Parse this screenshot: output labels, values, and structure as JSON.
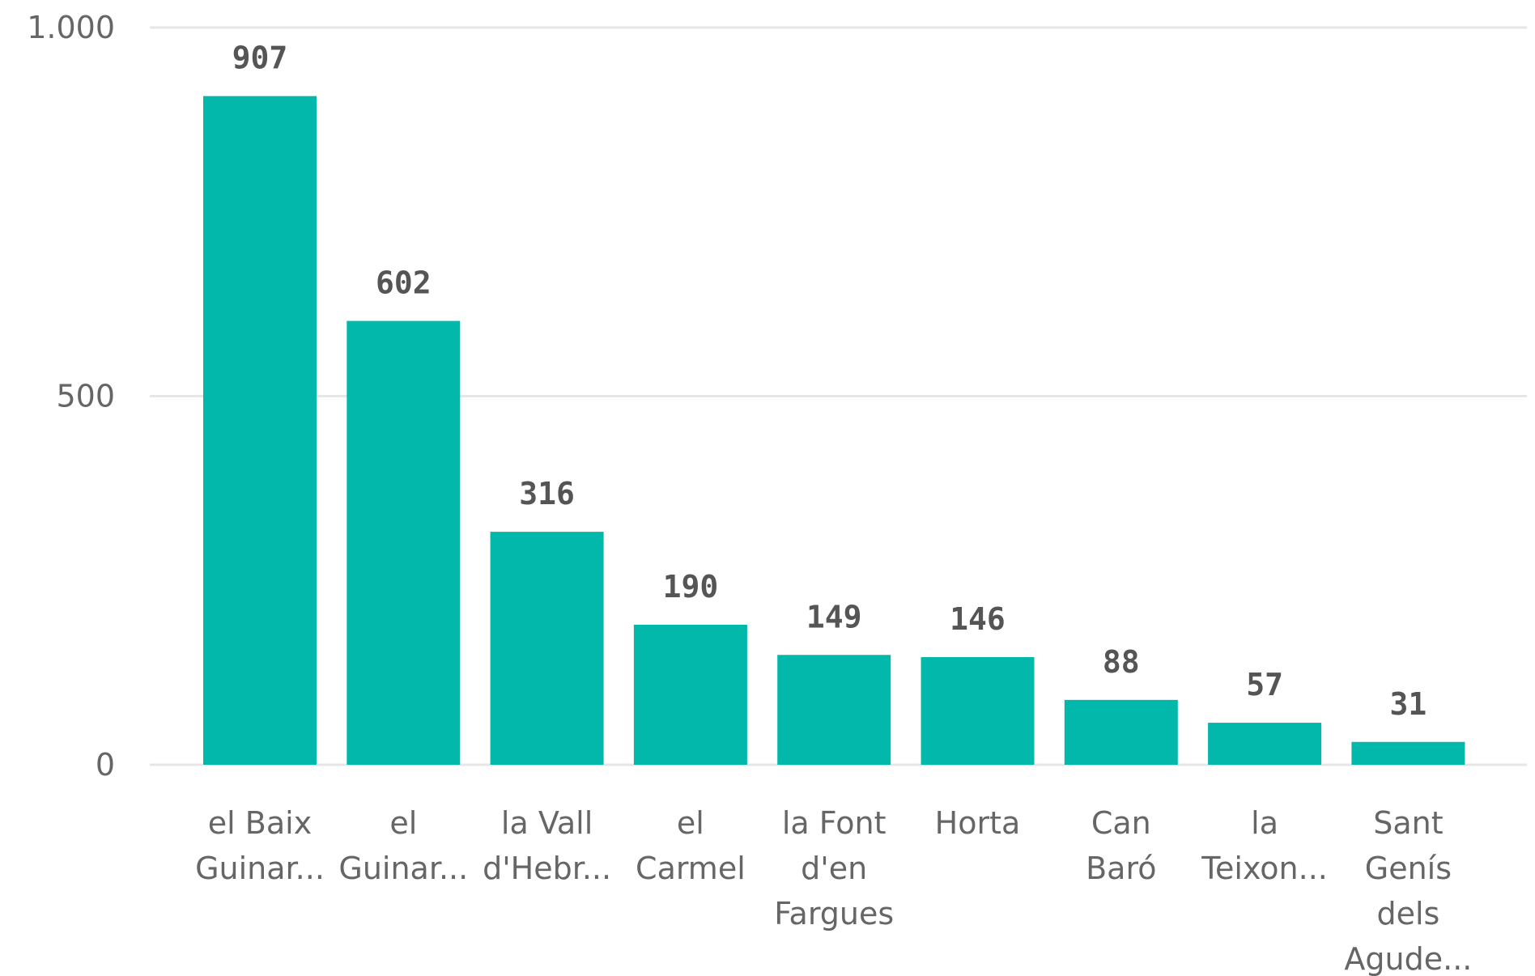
{
  "chart_data": {
    "type": "bar",
    "title": "",
    "xlabel": "",
    "ylabel": "",
    "categories": [
      [
        "el Baix",
        "Guinar..."
      ],
      [
        "el",
        "Guinar..."
      ],
      [
        "la Vall",
        "d'Hebr..."
      ],
      [
        "el",
        "Carmel"
      ],
      [
        "la Font",
        "d'en",
        "Fargues"
      ],
      [
        "Horta"
      ],
      [
        "Can",
        "Baró"
      ],
      [
        "la",
        "Teixon..."
      ],
      [
        "Sant",
        "Genís",
        "dels",
        "Agude..."
      ]
    ],
    "values": [
      907,
      602,
      316,
      190,
      149,
      146,
      88,
      57,
      31
    ],
    "data_labels": [
      "907",
      "602",
      "316",
      "190",
      "149",
      "146",
      "88",
      "57",
      "31"
    ],
    "ylim": [
      0,
      1000
    ],
    "y_ticks": [
      {
        "value": 0,
        "label": "0"
      },
      {
        "value": 500,
        "label": "500"
      },
      {
        "value": 1000,
        "label": "1.000"
      }
    ],
    "grid": true,
    "legend": "none",
    "colors": {
      "bar": "#01B8AA",
      "gridline": "#E6E6E6",
      "axis_text": "#666666",
      "data_label": "#555555"
    }
  }
}
